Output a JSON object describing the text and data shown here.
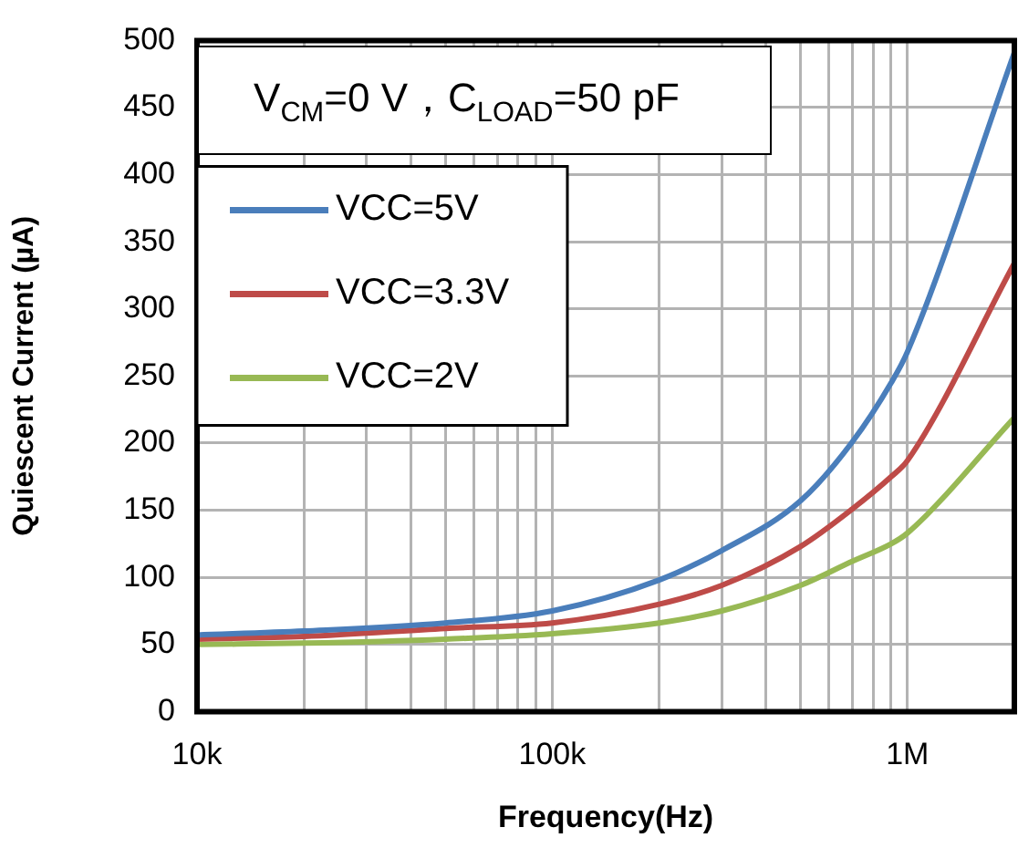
{
  "chart_data": {
    "type": "line",
    "xlabel": "Frequency(Hz)",
    "ylabel": "Quiescent Current (µA)",
    "annotations": [
      "V$_{CM}$=0 V，C$_{LOAD}$=50 pF"
    ],
    "x": [
      10000,
      20000,
      50000,
      100000,
      200000,
      300000,
      500000,
      700000,
      900000,
      1000000,
      2000000
    ],
    "series": [
      {
        "name": "VCC=5V",
        "color": "#4a7ebb",
        "values": [
          57,
          60,
          66,
          75,
          98,
          120,
          157,
          201,
          245,
          268,
          491
        ]
      },
      {
        "name": "VCC=3.3V",
        "color": "#be4b48",
        "values": [
          54,
          56,
          62,
          66,
          80,
          94,
          123,
          151,
          175,
          187,
          334
        ]
      },
      {
        "name": "VCC=2V",
        "color": "#98b954",
        "values": [
          50,
          51,
          54,
          58,
          66,
          75,
          94,
          112,
          125,
          133,
          219
        ]
      }
    ],
    "log": "x",
    "xlim": [
      10000,
      2000000
    ],
    "xticks": [
      {
        "value": 10000,
        "label": "10k"
      },
      {
        "value": 20000,
        "label": null
      },
      {
        "value": 30000,
        "label": null
      },
      {
        "value": 40000,
        "label": null
      },
      {
        "value": 50000,
        "label": null
      },
      {
        "value": 60000,
        "label": null
      },
      {
        "value": 70000,
        "label": null
      },
      {
        "value": 80000,
        "label": null
      },
      {
        "value": 90000,
        "label": null
      },
      {
        "value": 100000,
        "label": "100k"
      },
      {
        "value": 200000,
        "label": null
      },
      {
        "value": 300000,
        "label": null
      },
      {
        "value": 400000,
        "label": null
      },
      {
        "value": 500000,
        "label": null
      },
      {
        "value": 600000,
        "label": null
      },
      {
        "value": 700000,
        "label": null
      },
      {
        "value": 800000,
        "label": null
      },
      {
        "value": 900000,
        "label": null
      },
      {
        "value": 1000000,
        "label": "1M"
      }
    ],
    "ylim": [
      0,
      500
    ],
    "yticks": [
      0,
      50,
      100,
      150,
      200,
      250,
      300,
      350,
      400,
      450,
      500
    ],
    "grid": true,
    "legend": "top left",
    "marker": "none",
    "line_style": "solid"
  }
}
